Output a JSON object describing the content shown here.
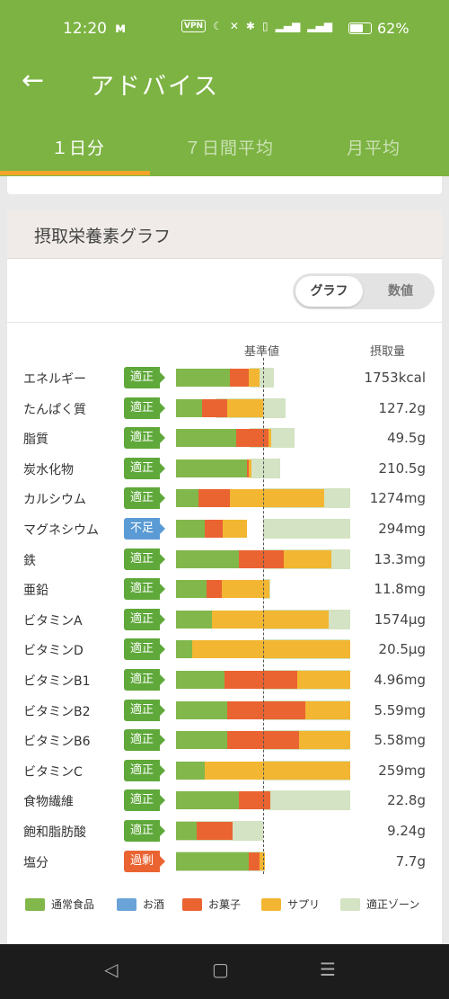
{
  "status_bar": {
    "time": "12:20",
    "logo": "ᴍ",
    "vpn": "VPN",
    "battery": "62%"
  },
  "app_bar": {
    "title": "アドバイス"
  },
  "tabs": [
    {
      "label": "１日分",
      "active": true
    },
    {
      "label": "７日間平均",
      "active": false
    },
    {
      "label": "月平均",
      "active": false
    }
  ],
  "card": {
    "title": "摂取栄養素グラフ",
    "toggle": {
      "graph": "グラフ",
      "numbers": "数値"
    },
    "columns": {
      "standard": "基準値",
      "intake": "摂取量"
    }
  },
  "colors": {
    "food": "#82b74b",
    "alcohol": "#6aa3d8",
    "snack": "#ea6432",
    "supplement": "#f2b632",
    "zone": "#d4e3c3",
    "badge_ok": "#5fa83a",
    "badge_low": "#5b9bd5",
    "badge_high": "#ea6432"
  },
  "chart_data": {
    "type": "bar",
    "orientation": "horizontal",
    "stacked": true,
    "reference_label": "基準値",
    "series": [
      {
        "name": "通常食品",
        "color": "#82b74b"
      },
      {
        "name": "お酒",
        "color": "#6aa3d8"
      },
      {
        "name": "お菓子",
        "color": "#ea6432"
      },
      {
        "name": "サプリ",
        "color": "#f2b632"
      },
      {
        "name": "適正ゾーン",
        "color": "#d4e3c3"
      }
    ],
    "rows": [
      {
        "name": "エネルギー",
        "status": "適正",
        "status_type": "ok",
        "value": "1753kcal",
        "food": 0.62,
        "snack": 0.22,
        "supplement": 0.12,
        "zone_start": 0.85,
        "zone_end": 1.12
      },
      {
        "name": "たんぱく質",
        "status": "適正",
        "status_type": "ok",
        "value": "127.2g",
        "food": 0.3,
        "snack": 0.29,
        "supplement": 0.41,
        "zone_start": 0.45,
        "zone_end": 1.26
      },
      {
        "name": "脂質",
        "status": "適正",
        "status_type": "ok",
        "value": "49.5g",
        "food": 0.69,
        "snack": 0.37,
        "supplement": 0.03,
        "zone_start": 0.85,
        "zone_end": 1.36
      },
      {
        "name": "炭水化物",
        "status": "適正",
        "status_type": "ok",
        "value": "210.5g",
        "food": 0.81,
        "snack": 0.03,
        "supplement": 0.03,
        "zone_start": 0.85,
        "zone_end": 1.2
      },
      {
        "name": "カルシウム",
        "status": "適正",
        "status_type": "ok",
        "value": "1274mg",
        "food": 0.26,
        "snack": 0.36,
        "supplement": 1.08,
        "zone_start": 1.0,
        "zone_end": 2.0
      },
      {
        "name": "マグネシウム",
        "status": "不足",
        "status_type": "low",
        "value": "294mg",
        "food": 0.33,
        "snack": 0.21,
        "supplement": 0.27,
        "zone_start": 1.0,
        "zone_end": 2.0
      },
      {
        "name": "鉄",
        "status": "適正",
        "status_type": "ok",
        "value": "13.3mg",
        "food": 0.72,
        "snack": 0.52,
        "supplement": 0.54,
        "zone_start": 1.0,
        "zone_end": 2.0
      },
      {
        "name": "亜鉛",
        "status": "適正",
        "status_type": "ok",
        "value": "11.8mg",
        "food": 0.35,
        "snack": 0.18,
        "supplement": 0.54,
        "zone_start": 1.0,
        "zone_end": 1.08
      },
      {
        "name": "ビタミンA",
        "status": "適正",
        "status_type": "ok",
        "value": "1574μg",
        "food": 0.41,
        "snack": 0.0,
        "supplement": 1.34,
        "zone_start": 1.0,
        "zone_end": 2.0
      },
      {
        "name": "ビタミンD",
        "status": "適正",
        "status_type": "ok",
        "value": "20.5μg",
        "food": 0.19,
        "snack": 0.0,
        "supplement": 1.81,
        "zone_start": 1.0,
        "zone_end": 2.0
      },
      {
        "name": "ビタミンB1",
        "status": "適正",
        "status_type": "ok",
        "value": "4.96mg",
        "food": 0.56,
        "snack": 0.83,
        "supplement": 0.61,
        "zone_start": 1.0,
        "zone_end": 2.0
      },
      {
        "name": "ビタミンB2",
        "status": "適正",
        "status_type": "ok",
        "value": "5.59mg",
        "food": 0.59,
        "snack": 0.89,
        "supplement": 0.52,
        "zone_start": 1.0,
        "zone_end": 2.0
      },
      {
        "name": "ビタミンB6",
        "status": "適正",
        "status_type": "ok",
        "value": "5.58mg",
        "food": 0.59,
        "snack": 0.82,
        "supplement": 0.59,
        "zone_start": 1.0,
        "zone_end": 2.0
      },
      {
        "name": "ビタミンC",
        "status": "適正",
        "status_type": "ok",
        "value": "259mg",
        "food": 0.33,
        "snack": 0.0,
        "supplement": 1.67,
        "zone_start": 1.0,
        "zone_end": 2.0
      },
      {
        "name": "食物繊維",
        "status": "適正",
        "status_type": "ok",
        "value": "22.8g",
        "food": 0.72,
        "snack": 0.36,
        "supplement": 0.0,
        "zone_start": 1.0,
        "zone_end": 2.0
      },
      {
        "name": "飽和脂肪酸",
        "status": "適正",
        "status_type": "ok",
        "value": "9.24g",
        "food": 0.24,
        "snack": 0.41,
        "supplement": 0.0,
        "zone_start": 0.0,
        "zone_end": 1.0
      },
      {
        "name": "塩分",
        "status": "過剰",
        "status_type": "high",
        "value": "7.7g",
        "food": 0.84,
        "snack": 0.12,
        "supplement": 0.06,
        "zone_start": 0.0,
        "zone_end": 1.0
      }
    ]
  },
  "legend": [
    {
      "label": "通常食品",
      "color": "#82b74b"
    },
    {
      "label": "お酒",
      "color": "#6aa3d8"
    },
    {
      "label": "お菓子",
      "color": "#ea6432"
    },
    {
      "label": "サプリ",
      "color": "#f2b632"
    },
    {
      "label": "適正ゾーン",
      "color": "#d4e3c3"
    }
  ]
}
